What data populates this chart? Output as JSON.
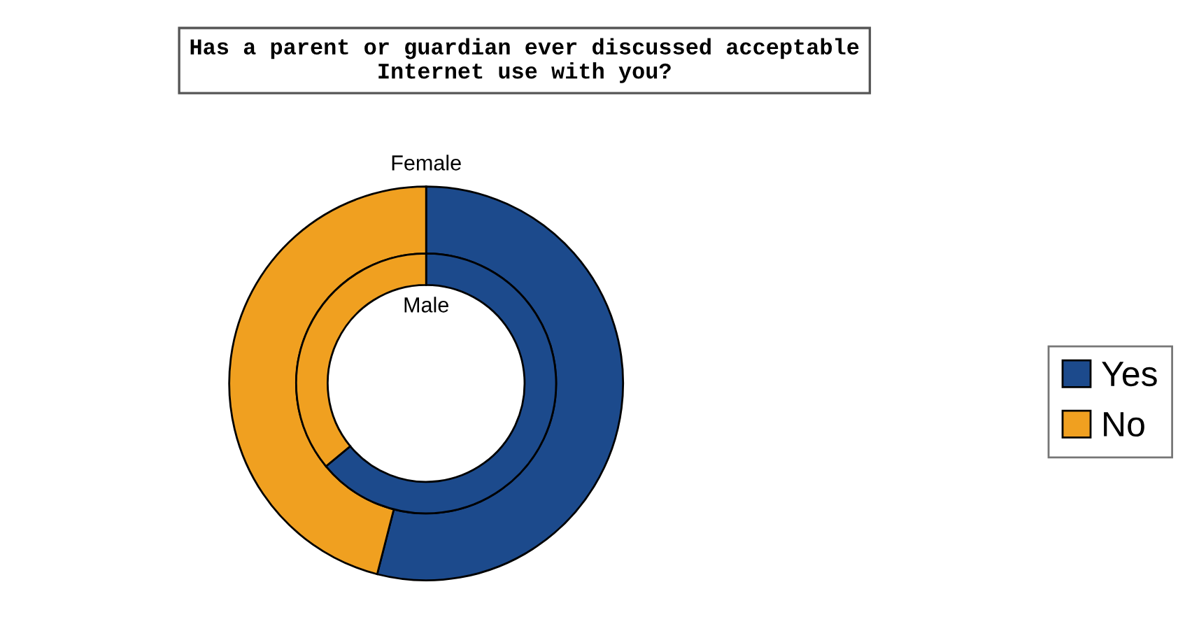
{
  "chart_data": {
    "type": "donut",
    "title": "Has a parent or guardian ever discussed acceptable\nInternet use with you?",
    "categories": [
      "Yes",
      "No"
    ],
    "series": [
      {
        "name": "Female",
        "values": [
          54,
          46
        ],
        "colors": [
          "#1c4a8c",
          "#f0a020"
        ]
      },
      {
        "name": "Male",
        "values": [
          64,
          36
        ],
        "colors": [
          "#1c4a8c",
          "#f0a020"
        ]
      }
    ],
    "legend": "right"
  }
}
